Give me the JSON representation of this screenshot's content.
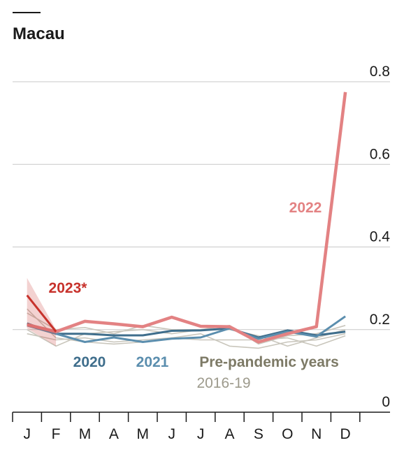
{
  "chart_data": {
    "type": "line",
    "title": "Macau",
    "categories": [
      "J",
      "F",
      "M",
      "A",
      "M",
      "J",
      "J",
      "A",
      "S",
      "O",
      "N",
      "D"
    ],
    "ylim": [
      0,
      0.8
    ],
    "yticks": [
      0,
      0.2,
      0.4,
      0.6,
      0.8
    ],
    "grid": true,
    "annotations": [
      "Pre-pandemic years",
      "2016-19"
    ],
    "series": [
      {
        "color": "#c9c6bc",
        "values": [
          0.19,
          0.175,
          0.18,
          0.17,
          0.175,
          0.18,
          0.19,
          0.16,
          0.155,
          0.17,
          0.175,
          0.19
        ]
      },
      {
        "color": "#c9c6bc",
        "values": [
          0.2,
          0.16,
          0.19,
          0.195,
          0.2,
          0.19,
          0.2,
          0.2,
          0.185,
          0.16,
          0.18,
          0.2
        ]
      },
      {
        "color": "#c9c6bc",
        "values": [
          0.24,
          0.2,
          0.205,
          0.19,
          0.21,
          0.2,
          0.2,
          0.21,
          0.165,
          0.185,
          0.19,
          0.21
        ]
      },
      {
        "color": "#c9c6bc",
        "values": [
          0.25,
          0.18,
          0.17,
          0.165,
          0.17,
          0.18,
          0.175,
          0.175,
          0.175,
          0.18,
          0.16,
          0.185
        ]
      },
      {
        "name": "2020",
        "color": "#3f6e8c",
        "values": [
          0.215,
          0.19,
          0.19,
          0.186,
          0.186,
          0.197,
          0.198,
          0.203,
          0.181,
          0.198,
          0.186,
          0.195
        ]
      },
      {
        "name": "2021",
        "color": "#5b8eae",
        "values": [
          0.21,
          0.19,
          0.17,
          0.181,
          0.17,
          0.178,
          0.181,
          0.203,
          0.178,
          0.195,
          0.183,
          0.232
        ]
      },
      {
        "name": "2022",
        "color": "#e38283",
        "values": [
          0.212,
          0.195,
          0.22,
          0.214,
          0.207,
          0.23,
          0.208,
          0.207,
          0.17,
          0.19,
          0.207,
          0.775
        ]
      },
      {
        "name": "2023*",
        "color": "#c7322c",
        "values": [
          0.283,
          0.195,
          null,
          null,
          null,
          null,
          null,
          null,
          null,
          null,
          null,
          null
        ],
        "band_lower": [
          0.203,
          0.16,
          null,
          null,
          null,
          null,
          null,
          null,
          null,
          null,
          null,
          null
        ],
        "band_upper": [
          0.325,
          0.2,
          null,
          null,
          null,
          null,
          null,
          null,
          null,
          null,
          null,
          null
        ]
      }
    ]
  }
}
